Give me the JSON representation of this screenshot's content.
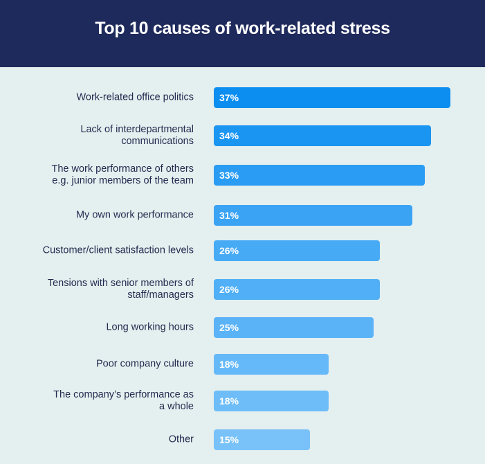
{
  "chart_data": {
    "type": "bar",
    "orientation": "horizontal",
    "title": "Top 10 causes of work-related stress",
    "categories": [
      [
        "Work-related office politics"
      ],
      [
        "Lack of interdepartmental",
        "communications"
      ],
      [
        "The work performance of others",
        "e.g. junior members of the team"
      ],
      [
        "My own work performance"
      ],
      [
        "Customer/client satisfaction levels"
      ],
      [
        "Tensions with senior members of",
        "staff/managers"
      ],
      [
        "Long working hours"
      ],
      [
        "Poor company culture"
      ],
      [
        "The company’s performance as",
        "a whole"
      ],
      [
        "Other"
      ]
    ],
    "values": [
      37,
      34,
      33,
      31,
      26,
      26,
      25,
      18,
      18,
      15
    ],
    "data_labels": [
      "37%",
      "34%",
      "33%",
      "31%",
      "26%",
      "26%",
      "25%",
      "18%",
      "18%",
      "15%"
    ],
    "bar_colors": [
      "#0c8ef0",
      "#1b95f2",
      "#2a9cf3",
      "#3aa3f4",
      "#47aaf5",
      "#50aff6",
      "#5ab3f7",
      "#66b9f8",
      "#6ebdf8",
      "#78c2f9"
    ],
    "header_color": "#1f2a5c",
    "background_color": "#e4efef",
    "grid": false
  }
}
